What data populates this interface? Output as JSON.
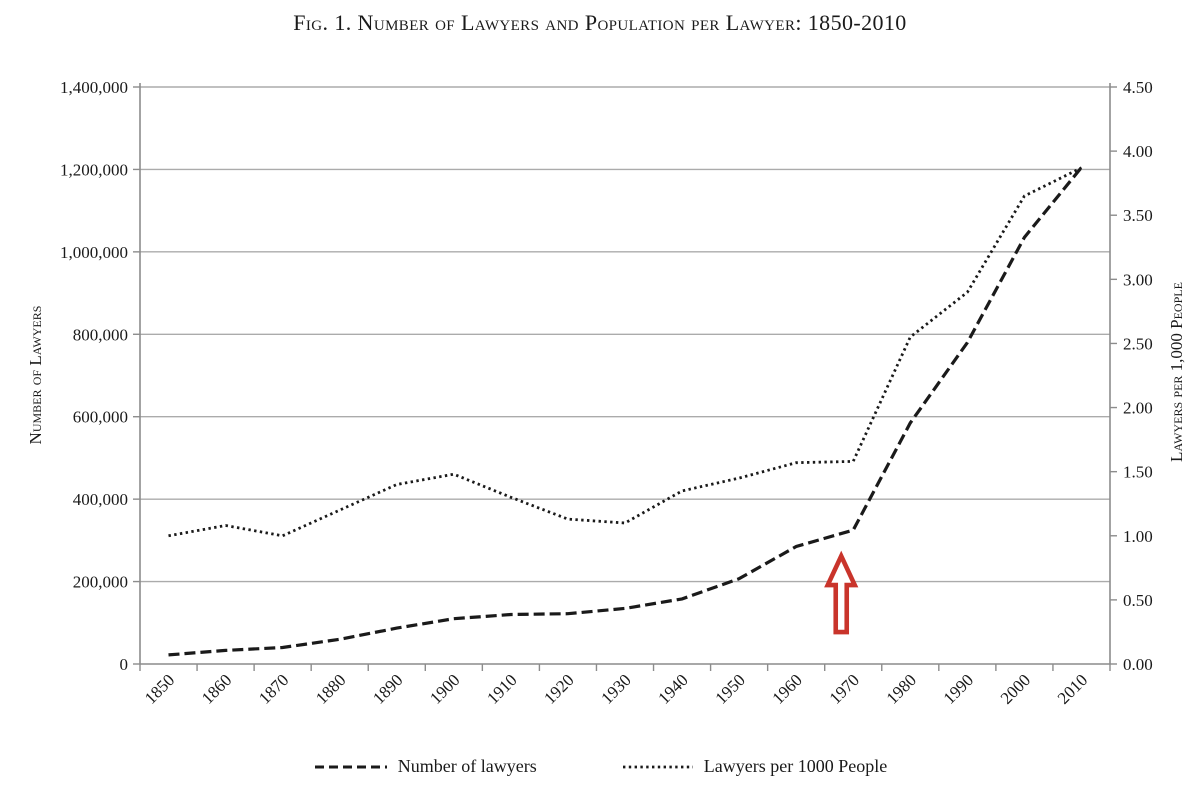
{
  "title": "Fig. 1. Number of Lawyers and Population per Lawyer: 1850-2010",
  "colors": {
    "series": "#1a1a1a",
    "gridline": "#ababab",
    "axis": "#8c8c8c",
    "annotation_red": "#c9342b",
    "background": "#ffffff"
  },
  "chart_data": {
    "type": "line",
    "dual_axis": true,
    "grid": "horizontal-only",
    "legend_position": "bottom",
    "categories": [
      "1850",
      "1860",
      "1870",
      "1880",
      "1890",
      "1900",
      "1910",
      "1920",
      "1930",
      "1940",
      "1950",
      "1960",
      "1970",
      "1980",
      "1990",
      "2000",
      "2010"
    ],
    "series": [
      {
        "name": "Number of lawyers",
        "axis": "left",
        "style": "dashed",
        "values": [
          22000,
          33000,
          40000,
          60000,
          87000,
          110000,
          120000,
          122000,
          135000,
          158000,
          207000,
          285000,
          325000,
          585000,
          780000,
          1035000,
          1205000
        ]
      },
      {
        "name": "Lawyers per 1000 People",
        "axis": "right",
        "style": "dotted",
        "values": [
          1.0,
          1.08,
          1.0,
          1.2,
          1.4,
          1.48,
          1.3,
          1.13,
          1.1,
          1.35,
          1.45,
          1.57,
          1.58,
          2.55,
          2.9,
          3.65,
          3.87
        ]
      }
    ],
    "left_axis": {
      "label": "Number of Lawyers",
      "min": 0,
      "max": 1400000,
      "tick_step": 200000,
      "tick_labels": [
        "0",
        "200,000",
        "400,000",
        "600,000",
        "800,000",
        "1,000,000",
        "1,200,000",
        "1,400,000"
      ]
    },
    "right_axis": {
      "label": "Lawyers per 1,000 People",
      "min": 0,
      "max": 4.5,
      "tick_step": 0.5,
      "tick_labels": [
        "0.00",
        "0.50",
        "1.00",
        "1.50",
        "2.00",
        "2.50",
        "3.00",
        "3.50",
        "4.00",
        "4.50"
      ]
    },
    "x_axis": {
      "tick_label_rotation_deg": -45
    },
    "annotation": {
      "type": "up-arrow",
      "category": "1970",
      "color": "#c9342b"
    }
  },
  "legend": {
    "items": [
      {
        "label": "Number of lawyers",
        "style": "dashed"
      },
      {
        "label": "Lawyers per 1000 People",
        "style": "dotted"
      }
    ]
  }
}
